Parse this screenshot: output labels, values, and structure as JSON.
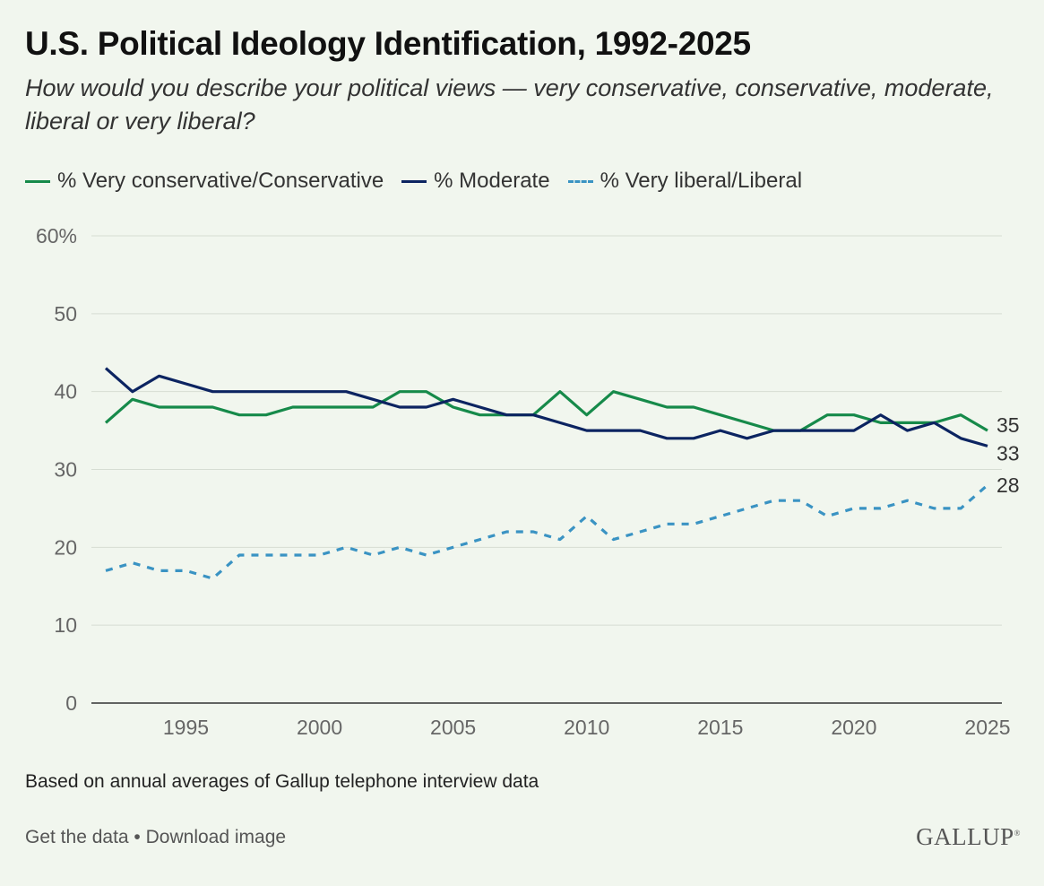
{
  "title": "U.S. Political Ideology Identification, 1992-2025",
  "subtitle": "How would you describe your political views — very conservative, conservative, moderate, liberal or very liberal?",
  "footnote": "Based on annual averages of Gallup telephone interview data",
  "footer": {
    "get_data": "Get the data",
    "separator": " • ",
    "download": "Download image"
  },
  "logo": "GALLUP",
  "colors": {
    "conservative": "#168a4a",
    "moderate": "#0c2461",
    "liberal": "#3a93c3",
    "grid": "#d6ddd3",
    "axis": "#333333"
  },
  "chart_data": {
    "type": "line",
    "x": [
      1992,
      1993,
      1994,
      1995,
      1996,
      1997,
      1998,
      1999,
      2000,
      2001,
      2002,
      2003,
      2004,
      2005,
      2006,
      2007,
      2008,
      2009,
      2010,
      2011,
      2012,
      2013,
      2014,
      2015,
      2016,
      2017,
      2018,
      2019,
      2020,
      2021,
      2022,
      2023,
      2024,
      2025
    ],
    "xticks": [
      1995,
      2000,
      2005,
      2010,
      2015,
      2020,
      2025
    ],
    "yticks": [
      0,
      10,
      20,
      30,
      40,
      50,
      60
    ],
    "ytick_labels": [
      "0",
      "10",
      "20",
      "30",
      "40",
      "50",
      "60%"
    ],
    "xlim": [
      1992,
      2025
    ],
    "ylim": [
      0,
      60
    ],
    "grid": true,
    "legend_position": "top-left",
    "series": [
      {
        "name": "% Very conservative/Conservative",
        "style": "solid",
        "end_label": "35",
        "values": [
          36,
          39,
          38,
          38,
          38,
          37,
          37,
          38,
          38,
          38,
          38,
          40,
          40,
          38,
          37,
          37,
          37,
          40,
          37,
          40,
          39,
          38,
          38,
          37,
          36,
          35,
          35,
          37,
          37,
          36,
          36,
          36,
          37,
          35
        ]
      },
      {
        "name": "% Moderate",
        "style": "solid",
        "end_label": "33",
        "values": [
          43,
          40,
          42,
          41,
          40,
          40,
          40,
          40,
          40,
          40,
          39,
          38,
          38,
          39,
          38,
          37,
          37,
          36,
          35,
          35,
          35,
          34,
          34,
          35,
          34,
          35,
          35,
          35,
          35,
          37,
          35,
          36,
          34,
          33
        ]
      },
      {
        "name": "% Very liberal/Liberal",
        "style": "dashed",
        "end_label": "28",
        "values": [
          17,
          18,
          17,
          17,
          16,
          19,
          19,
          19,
          19,
          20,
          19,
          20,
          19,
          20,
          21,
          22,
          22,
          21,
          24,
          21,
          22,
          23,
          23,
          24,
          25,
          26,
          26,
          24,
          25,
          25,
          26,
          25,
          25,
          28
        ]
      }
    ]
  }
}
